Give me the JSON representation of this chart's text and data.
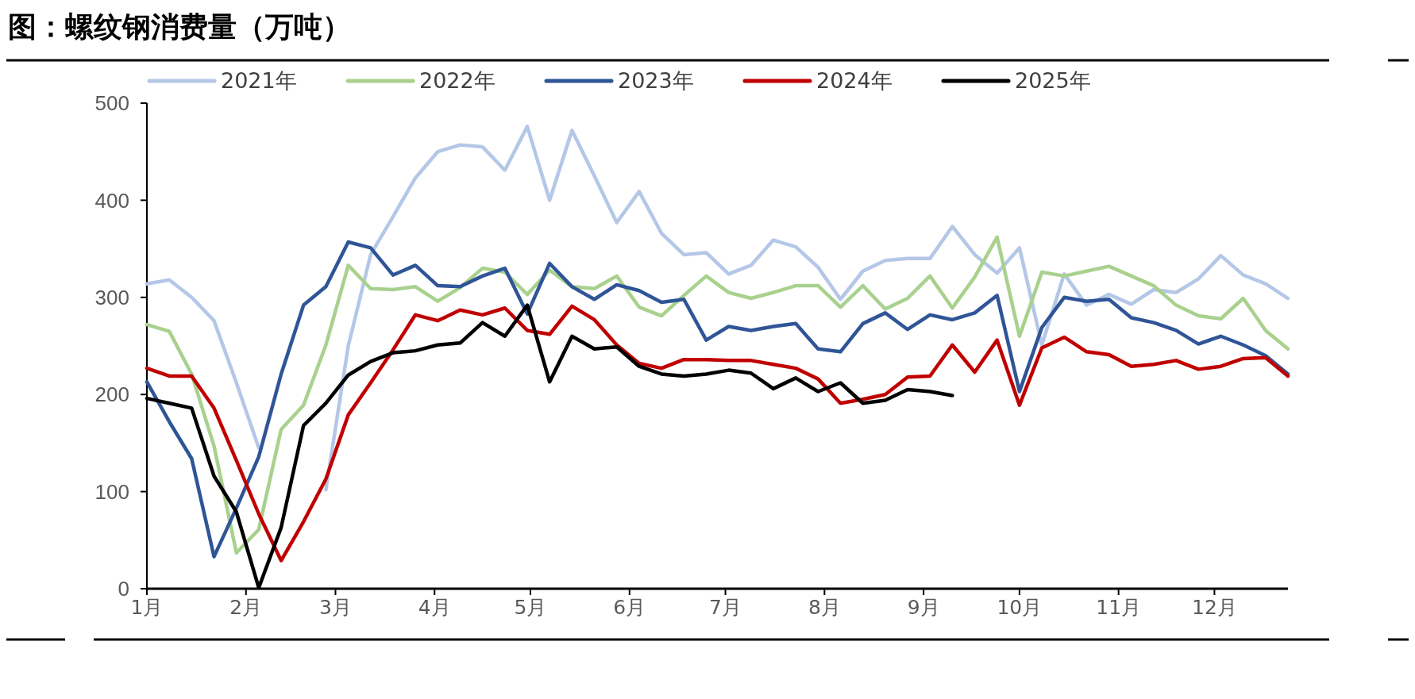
{
  "chart_data": {
    "type": "line",
    "title": "图：螺纹钢消费量（万吨）",
    "x": [
      "--01-01",
      "--01-08",
      "--01-15",
      "--01-22",
      "--01-29",
      "--02-05",
      "--02-12",
      "--02-19",
      "--02-26",
      "--03-05",
      "--03-12",
      "--03-19",
      "--03-26",
      "--04-02",
      "--04-09",
      "--04-16",
      "--04-23",
      "--04-30",
      "--05-07",
      "--05-14",
      "--05-21",
      "--05-28",
      "--06-04",
      "--06-11",
      "--06-18",
      "--06-25",
      "--07-02",
      "--07-09",
      "--07-16",
      "--07-23",
      "--07-30",
      "--08-06",
      "--08-13",
      "--08-20",
      "--08-27",
      "--09-03",
      "--09-10",
      "--09-17",
      "--09-24",
      "--10-01",
      "--10-08",
      "--10-15",
      "--10-22",
      "--10-29",
      "--11-05",
      "--11-12",
      "--11-19",
      "--11-26",
      "--12-03",
      "--12-10",
      "--12-17",
      "--12-24"
    ],
    "xlim": [
      "--01-01",
      "--12-24"
    ],
    "xticks": [
      {
        "value": "--01-01",
        "label": "1月"
      },
      {
        "value": "--02-01",
        "label": "2月"
      },
      {
        "value": "--03-01",
        "label": "3月"
      },
      {
        "value": "--04-01",
        "label": "4月"
      },
      {
        "value": "--05-01",
        "label": "5月"
      },
      {
        "value": "--06-01",
        "label": "6月"
      },
      {
        "value": "--07-01",
        "label": "7月"
      },
      {
        "value": "--08-01",
        "label": "8月"
      },
      {
        "value": "--09-01",
        "label": "9月"
      },
      {
        "value": "--10-01",
        "label": "10月"
      },
      {
        "value": "--11-01",
        "label": "11月"
      },
      {
        "value": "--12-01",
        "label": "12月"
      }
    ],
    "ylim": [
      0,
      500
    ],
    "yticks": [
      0,
      100,
      200,
      300,
      400,
      500
    ],
    "legend": "top",
    "grid": false,
    "marker": "none",
    "line_style": "solid",
    "series": [
      {
        "name": "2021年",
        "color": "#b4c7e7",
        "values": [
          314,
          318,
          300,
          276,
          212,
          145,
          null,
          null,
          102,
          250,
          344,
          383,
          423,
          450,
          457,
          455,
          431,
          476,
          400,
          472,
          425,
          377,
          409,
          366,
          344,
          346,
          324,
          333,
          359,
          352,
          331,
          298,
          327,
          338,
          340,
          340,
          373,
          344,
          325,
          351,
          251,
          324,
          292,
          303,
          293,
          308,
          305,
          319,
          343,
          323,
          314,
          299
        ]
      },
      {
        "name": "2022年",
        "color": "#a9d18e",
        "values": [
          272,
          265,
          221,
          147,
          37,
          61,
          164,
          189,
          251,
          333,
          309,
          308,
          311,
          296,
          310,
          330,
          326,
          303,
          328,
          311,
          309,
          322,
          290,
          281,
          302,
          322,
          305,
          299,
          305,
          312,
          312,
          290,
          312,
          288,
          299,
          322,
          289,
          321,
          362,
          260,
          326,
          322,
          327,
          332,
          322,
          312,
          292,
          281,
          278,
          299,
          266,
          247
        ]
      },
      {
        "name": "2023年",
        "color": "#2f5597",
        "values": [
          213,
          172,
          134,
          33,
          83,
          136,
          221,
          292,
          311,
          357,
          351,
          323,
          333,
          312,
          311,
          322,
          330,
          283,
          335,
          311,
          298,
          313,
          307,
          295,
          298,
          256,
          270,
          266,
          270,
          273,
          247,
          244,
          273,
          284,
          267,
          282,
          277,
          284,
          302,
          203,
          269,
          300,
          296,
          298,
          279,
          274,
          266,
          252,
          260,
          251,
          240,
          221
        ]
      },
      {
        "name": "2024年",
        "color": "#c00000",
        "values": [
          227,
          219,
          219,
          186,
          132,
          77,
          29,
          69,
          113,
          179,
          212,
          246,
          282,
          276,
          287,
          282,
          289,
          266,
          262,
          291,
          277,
          251,
          232,
          227,
          236,
          236,
          235,
          235,
          231,
          227,
          216,
          191,
          195,
          200,
          218,
          219,
          251,
          223,
          256,
          189,
          248,
          259,
          244,
          241,
          229,
          231,
          235,
          226,
          229,
          237,
          238,
          219
        ]
      },
      {
        "name": "2025年",
        "color": "#000000",
        "values": [
          196,
          191,
          186,
          116,
          79,
          1,
          63,
          168,
          191,
          220,
          234,
          243,
          245,
          251,
          253,
          274,
          260,
          292,
          213,
          260,
          247,
          249,
          229,
          221,
          219,
          221,
          225,
          222,
          206,
          217,
          203,
          212,
          191,
          194,
          205,
          203,
          199,
          null,
          null,
          null,
          null,
          null,
          null,
          null,
          null,
          null,
          null,
          null,
          null,
          null,
          null,
          null
        ]
      }
    ]
  }
}
